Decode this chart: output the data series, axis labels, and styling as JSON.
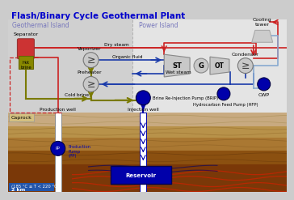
{
  "title": "Flash/Binary Cycle Geothermal Plant",
  "geo_island_label": "Geothermal Island",
  "power_island_label": "Power Island",
  "separator_label": "Separator",
  "hot_brine_label": "Hot\nbrine",
  "vaporizer_label": "Vaporizer",
  "preheater_label": "Preheater",
  "cold_brine_label": "Cold brine",
  "dry_steam_label": "Dry steam",
  "wet_steam_label": "Wet steam",
  "organic_fluid_label": "Organic fluid",
  "st_label": "ST",
  "g_label": "G",
  "ot_label": "OT",
  "condenser_label": "Condenser",
  "cwp_label": "CWP",
  "cooling_tower_label": "Cooling\ntower",
  "brip_label": "Brine Re-Injection Pump (BRIP)",
  "hfp_label": "Hydrocarbon Feed Pump (HFP)",
  "production_well_label": "Production well",
  "injection_well_label": "Injection well",
  "caprock_label": "Caprock",
  "production_pump_label": "Production\nPump\n(PP)",
  "reservoir_label": "Reservoir",
  "temp_label": "(185 °C ≤ T < 220 °C)",
  "depth_label": "2 km",
  "red_c": "#cc2222",
  "blue_c": "#1a3aaa",
  "dark_blue_c": "#0000aa",
  "olive_c": "#7a7a00",
  "lt_blue_c": "#88aad0",
  "title_color": "#0000cc",
  "island_color": "#7777bb"
}
